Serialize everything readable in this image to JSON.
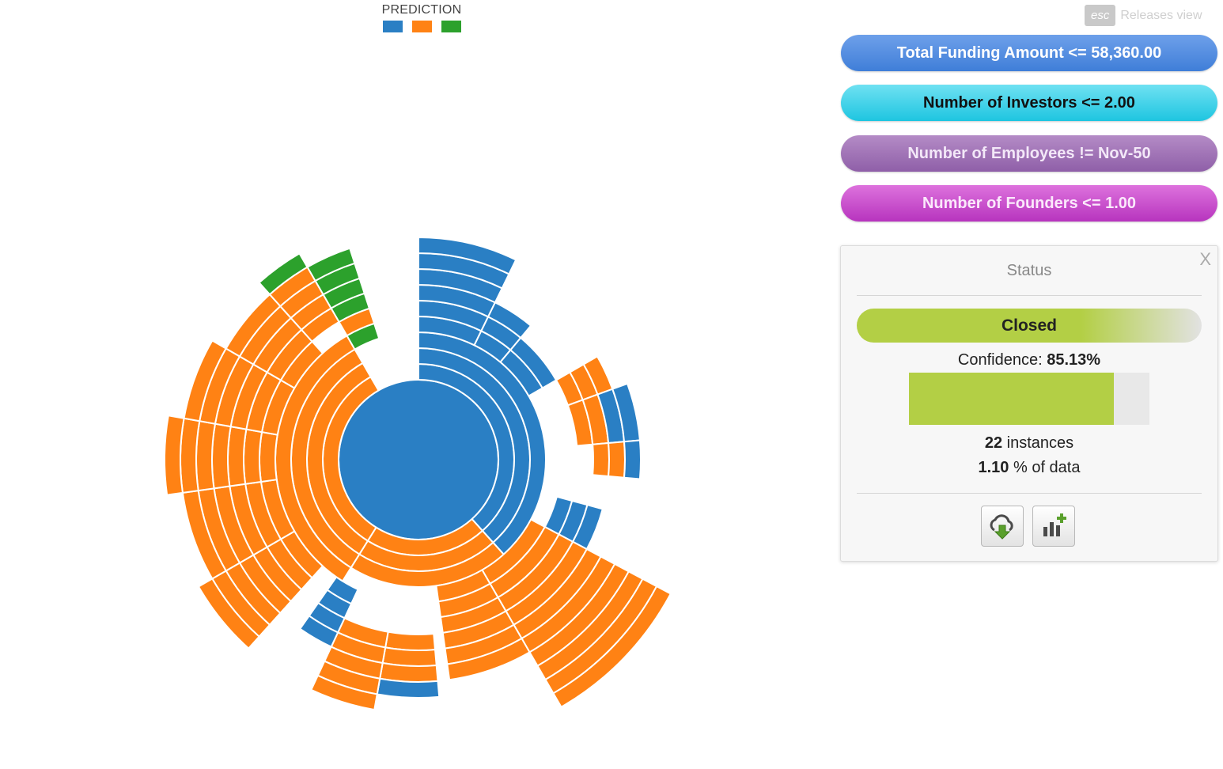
{
  "legend": {
    "title": "PREDICTION",
    "colors": [
      "#2a7fc4",
      "#ff8214",
      "#2ca12c"
    ]
  },
  "header": {
    "esc_label": "esc",
    "releases_label": "Releases view"
  },
  "filters": [
    {
      "label": "Total Funding Amount <= 58,360.00",
      "color": "#4a86dd"
    },
    {
      "label": "Number of Investors <= 2.00",
      "color": "#2ecbe4"
    },
    {
      "label": "Number of Employees != Nov-50",
      "color": "#9c6bb3"
    },
    {
      "label": "Number of Founders <= 1.00",
      "color": "#c447c8"
    }
  ],
  "status_panel": {
    "title": "Status",
    "close_label": "X",
    "prediction": "Closed",
    "prediction_color": "#b3cf45",
    "confidence_label": "Confidence:",
    "confidence_value": "85.13%",
    "confidence_fraction": 0.8513,
    "instances_count": "22",
    "instances_label": "instances",
    "data_pct": "1.10",
    "data_label": "% of data",
    "buttons": [
      {
        "icon": "cloud-download-icon"
      },
      {
        "icon": "add-chart-icon"
      }
    ]
  },
  "chart_data": {
    "type": "sunburst",
    "color_legend": [
      "#2a7fc4",
      "#ff8214",
      "#2ca12c"
    ]
  }
}
